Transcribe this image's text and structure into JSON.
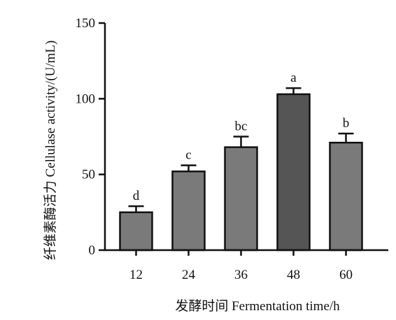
{
  "chart_data": {
    "type": "bar",
    "title": "",
    "xlabel": "发酵时间  Fermentation time/h",
    "ylabel": "纤维素酶活力  Cellulase activity/(U/mL)",
    "categories": [
      "12",
      "24",
      "36",
      "48",
      "60"
    ],
    "values": [
      25,
      52,
      68,
      103,
      71
    ],
    "errors": [
      4,
      4,
      7,
      4,
      6
    ],
    "significance_labels": [
      "d",
      "c",
      "bc",
      "a",
      "b"
    ],
    "ylim": [
      0,
      150
    ],
    "yticks": [
      0,
      50,
      100,
      150
    ],
    "grid": false,
    "legend": "none",
    "colors": {
      "bar": "#7a7a7a",
      "bar_highlight": "#555555",
      "edge": "#111111",
      "axis": "#111111"
    },
    "highlight_index": 3
  }
}
